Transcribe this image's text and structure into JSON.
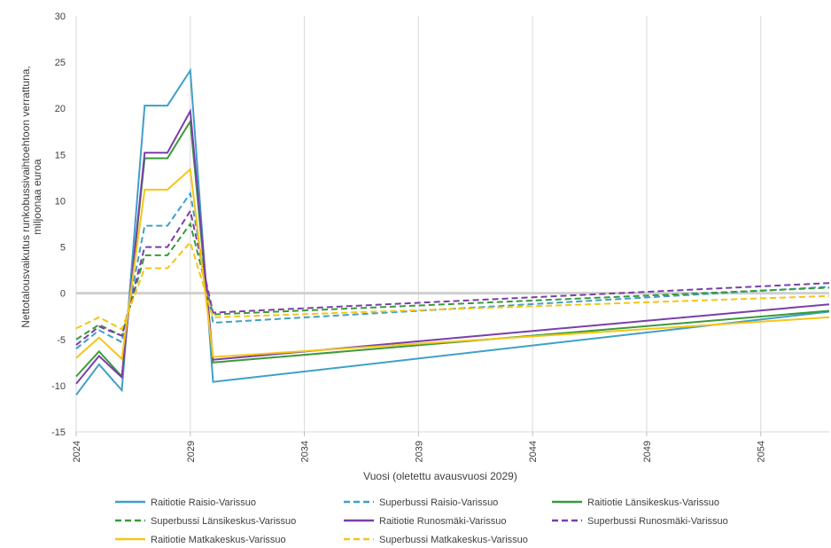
{
  "chart_data": {
    "type": "line",
    "title": "",
    "xlabel": "Vuosi (oletettu avausvuosi 2029)",
    "ylabel_lines": [
      "Nettotalousvaikutus runkobussivaihtoehtoon verrattuna,",
      "miljoonaa euroa"
    ],
    "ylim": [
      -15,
      30
    ],
    "yticks": [
      -15,
      -10,
      -5,
      0,
      5,
      10,
      15,
      20,
      25,
      30
    ],
    "xlim": [
      2024,
      2057
    ],
    "xtick_labels": [
      "2024",
      "2029",
      "2034",
      "2039",
      "2044",
      "2049",
      "2054"
    ],
    "grid": "vertical",
    "zero_line": true,
    "legend_position": "bottom",
    "x": [
      2024,
      2025,
      2026,
      2027,
      2028,
      2029,
      2030,
      2057
    ],
    "series": [
      {
        "name": "Raitiotie Raisio-Varissuo",
        "color": "#3fa0c8",
        "dash": false,
        "values": [
          -11,
          -7.7,
          -10.5,
          20.3,
          20.3,
          24.1,
          -9.6,
          -2
        ]
      },
      {
        "name": "Superbussi Raisio-Varissuo",
        "color": "#3fa0c8",
        "dash": true,
        "values": [
          -6,
          -4,
          -5.3,
          7.3,
          7.3,
          10.8,
          -3.2,
          0.7
        ]
      },
      {
        "name": "Raitiotie Länsikeskus-Varissuo",
        "color": "#3a9a3a",
        "dash": false,
        "values": [
          -9,
          -6.3,
          -9,
          14.6,
          14.6,
          18.6,
          -7.5,
          -1.9
        ]
      },
      {
        "name": "Superbussi Länsikeskus-Varissuo",
        "color": "#3a9a3a",
        "dash": true,
        "values": [
          -5,
          -3.4,
          -4.6,
          4.1,
          4.1,
          7.5,
          -2.3,
          0.6
        ]
      },
      {
        "name": "Raitiotie Runosmäki-Varissuo",
        "color": "#7a3fa8",
        "dash": false,
        "values": [
          -9.8,
          -6.8,
          -9.1,
          15.2,
          15.2,
          19.7,
          -7.2,
          -1.2
        ]
      },
      {
        "name": "Superbussi Runosmäki-Varissuo",
        "color": "#7a3fa8",
        "dash": true,
        "values": [
          -5.6,
          -3.6,
          -4.6,
          5,
          5,
          8.9,
          -2.1,
          1.1
        ]
      },
      {
        "name": "Raitiotie Matkakeskus-Varissuo",
        "color": "#f5c518",
        "dash": false,
        "values": [
          -7,
          -4.8,
          -7.1,
          11.2,
          11.2,
          13.4,
          -6.9,
          -2.6
        ]
      },
      {
        "name": "Superbussi Matkakeskus-Varissuo",
        "color": "#f5c518",
        "dash": true,
        "values": [
          -3.8,
          -2.6,
          -3.9,
          2.7,
          2.7,
          5.5,
          -2.6,
          -0.3
        ]
      }
    ]
  }
}
